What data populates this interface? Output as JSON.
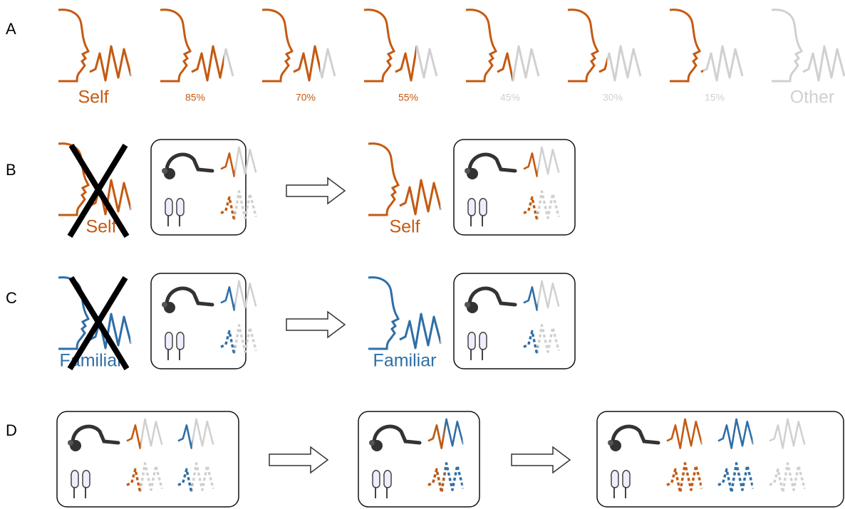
{
  "row_labels": [
    "A",
    "B",
    "C",
    "D"
  ],
  "row_a": {
    "labels": [
      "Self",
      "85%",
      "70%",
      "55%",
      "45%",
      "30%",
      "15%",
      "Other"
    ]
  },
  "row_b": {
    "crossed_label": "Self",
    "label": "Self"
  },
  "row_c": {
    "crossed_label": "Familiar",
    "label": "Familiar"
  }
}
